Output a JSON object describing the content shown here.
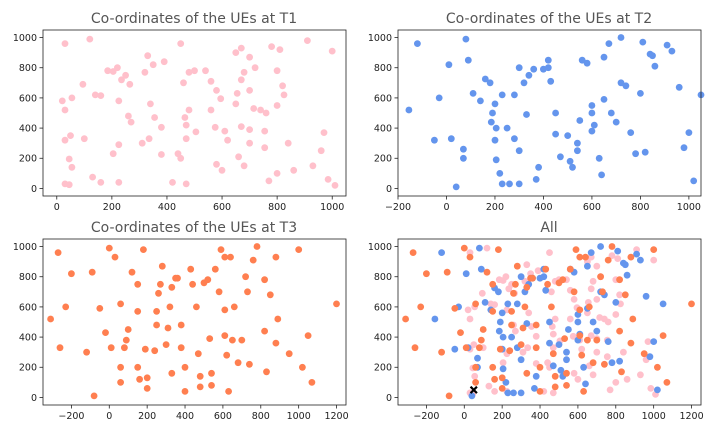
{
  "chart_data": [
    {
      "type": "scatter",
      "title": "Co-ordinates of the UEs at T1",
      "xlim": [
        -50,
        1050
      ],
      "ylim": [
        -50,
        1050
      ],
      "xticks": [
        0,
        200,
        400,
        600,
        800,
        1000
      ],
      "yticks": [
        0,
        200,
        400,
        600,
        800,
        1000
      ],
      "series": [
        {
          "color": "#ffc0cb",
          "points": [
            [
              30,
              960
            ],
            [
              120,
              990
            ],
            [
              20,
              580
            ],
            [
              30,
              520
            ],
            [
              95,
              690
            ],
            [
              55,
              600
            ],
            [
              30,
              320
            ],
            [
              50,
              350
            ],
            [
              45,
              195
            ],
            [
              55,
              140
            ],
            [
              30,
              30
            ],
            [
              45,
              25
            ],
            [
              100,
              330
            ],
            [
              140,
              620
            ],
            [
              160,
              615
            ],
            [
              185,
              780
            ],
            [
              205,
              775
            ],
            [
              220,
              800
            ],
            [
              235,
              720
            ],
            [
              250,
              750
            ],
            [
              265,
              690
            ],
            [
              225,
              580
            ],
            [
              260,
              480
            ],
            [
              270,
              440
            ],
            [
              225,
              290
            ],
            [
              205,
              230
            ],
            [
              225,
              40
            ],
            [
              130,
              75
            ],
            [
              160,
              40
            ],
            [
              330,
              880
            ],
            [
              350,
              820
            ],
            [
              320,
              770
            ],
            [
              390,
              840
            ],
            [
              340,
              560
            ],
            [
              355,
              470
            ],
            [
              380,
              405
            ],
            [
              335,
              330
            ],
            [
              310,
              300
            ],
            [
              380,
              225
            ],
            [
              450,
              960
            ],
            [
              480,
              770
            ],
            [
              500,
              780
            ],
            [
              460,
              700
            ],
            [
              480,
              520
            ],
            [
              465,
              470
            ],
            [
              470,
              420
            ],
            [
              505,
              375
            ],
            [
              470,
              330
            ],
            [
              440,
              230
            ],
            [
              450,
              200
            ],
            [
              420,
              40
            ],
            [
              470,
              30
            ],
            [
              540,
              780
            ],
            [
              560,
              710
            ],
            [
              580,
              650
            ],
            [
              595,
              595
            ],
            [
              560,
              520
            ],
            [
              575,
              405
            ],
            [
              610,
              380
            ],
            [
              620,
              320
            ],
            [
              580,
              160
            ],
            [
              600,
              120
            ],
            [
              650,
              900
            ],
            [
              670,
              930
            ],
            [
              700,
              870
            ],
            [
              670,
              720
            ],
            [
              700,
              650
            ],
            [
              655,
              630
            ],
            [
              650,
              560
            ],
            [
              715,
              530
            ],
            [
              740,
              520
            ],
            [
              760,
              500
            ],
            [
              670,
              410
            ],
            [
              700,
              390
            ],
            [
              755,
              380
            ],
            [
              660,
              210
            ],
            [
              680,
              150
            ],
            [
              700,
              300
            ],
            [
              755,
              270
            ],
            [
              780,
              940
            ],
            [
              810,
              920
            ],
            [
              800,
              780
            ],
            [
              820,
              680
            ],
            [
              825,
              620
            ],
            [
              800,
              550
            ],
            [
              840,
              300
            ],
            [
              860,
              120
            ],
            [
              800,
              100
            ],
            [
              770,
              50
            ],
            [
              910,
              980
            ],
            [
              970,
              370
            ],
            [
              960,
              250
            ],
            [
              930,
              150
            ],
            [
              1000,
              910
            ],
            [
              985,
              60
            ],
            [
              1010,
              20
            ],
            [
              720,
              800
            ],
            [
              680,
              770
            ]
          ]
        }
      ]
    },
    {
      "type": "scatter",
      "title": "Co-ordinates of the UEs at T2",
      "xlim": [
        -200,
        1050
      ],
      "ylim": [
        -50,
        1050
      ],
      "xticks": [
        -200,
        0,
        200,
        400,
        600,
        800,
        1000
      ],
      "yticks": [
        0,
        200,
        400,
        600,
        800,
        1000
      ],
      "series": [
        {
          "color": "#6495ed",
          "points": [
            [
              -155,
              520
            ],
            [
              -120,
              960
            ],
            [
              -50,
              320
            ],
            [
              -30,
              600
            ],
            [
              10,
              820
            ],
            [
              20,
              330
            ],
            [
              40,
              10
            ],
            [
              70,
              200
            ],
            [
              70,
              260
            ],
            [
              80,
              990
            ],
            [
              90,
              850
            ],
            [
              110,
              630
            ],
            [
              140,
              580
            ],
            [
              160,
              725
            ],
            [
              180,
              700
            ],
            [
              185,
              440
            ],
            [
              190,
              500
            ],
            [
              200,
              560
            ],
            [
              205,
              400
            ],
            [
              200,
              320
            ],
            [
              205,
              190
            ],
            [
              220,
              100
            ],
            [
              230,
              30
            ],
            [
              260,
              30
            ],
            [
              230,
              620
            ],
            [
              250,
              400
            ],
            [
              280,
              330
            ],
            [
              280,
              620
            ],
            [
              300,
              800
            ],
            [
              300,
              30
            ],
            [
              320,
              700
            ],
            [
              330,
              490
            ],
            [
              340,
              750
            ],
            [
              360,
              790
            ],
            [
              370,
              60
            ],
            [
              380,
              140
            ],
            [
              400,
              790
            ],
            [
              420,
              850
            ],
            [
              420,
              800
            ],
            [
              430,
              710
            ],
            [
              450,
              500
            ],
            [
              450,
              360
            ],
            [
              500,
              350
            ],
            [
              510,
              180
            ],
            [
              520,
              140
            ],
            [
              540,
              250
            ],
            [
              540,
              300
            ],
            [
              550,
              450
            ],
            [
              560,
              850
            ],
            [
              580,
              830
            ],
            [
              600,
              550
            ],
            [
              600,
              500
            ],
            [
              600,
              380
            ],
            [
              610,
              420
            ],
            [
              630,
              200
            ],
            [
              650,
              870
            ],
            [
              650,
              590
            ],
            [
              670,
              960
            ],
            [
              680,
              500
            ],
            [
              700,
              440
            ],
            [
              720,
              1000
            ],
            [
              720,
              700
            ],
            [
              740,
              680
            ],
            [
              760,
              370
            ],
            [
              780,
              230
            ],
            [
              800,
              630
            ],
            [
              810,
              970
            ],
            [
              820,
              240
            ],
            [
              840,
              890
            ],
            [
              850,
              880
            ],
            [
              860,
              810
            ],
            [
              910,
              950
            ],
            [
              930,
              910
            ],
            [
              960,
              670
            ],
            [
              980,
              270
            ],
            [
              1000,
              370
            ],
            [
              1020,
              50
            ],
            [
              1050,
              620
            ],
            [
              300,
              250
            ],
            [
              470,
              210
            ],
            [
              640,
              90
            ]
          ]
        }
      ]
    },
    {
      "type": "scatter",
      "title": "Co-ordinates of the UEs at T3",
      "xlim": [
        -350,
        1250
      ],
      "ylim": [
        -50,
        1050
      ],
      "xticks": [
        -200,
        0,
        200,
        400,
        600,
        800,
        1000,
        1200
      ],
      "yticks": [
        0,
        200,
        400,
        600,
        800,
        1000
      ],
      "series": [
        {
          "color": "#ff7f50",
          "points": [
            [
              -310,
              520
            ],
            [
              -270,
              960
            ],
            [
              -260,
              330
            ],
            [
              -230,
              600
            ],
            [
              -200,
              820
            ],
            [
              -120,
              300
            ],
            [
              -90,
              830
            ],
            [
              -80,
              10
            ],
            [
              -50,
              590
            ],
            [
              -20,
              430
            ],
            [
              0,
              990
            ],
            [
              10,
              330
            ],
            [
              30,
              930
            ],
            [
              60,
              620
            ],
            [
              60,
              200
            ],
            [
              60,
              100
            ],
            [
              80,
              330
            ],
            [
              90,
              380
            ],
            [
              100,
              450
            ],
            [
              120,
              830
            ],
            [
              150,
              750
            ],
            [
              150,
              570
            ],
            [
              150,
              200
            ],
            [
              160,
              120
            ],
            [
              180,
              980
            ],
            [
              190,
              320
            ],
            [
              200,
              130
            ],
            [
              240,
              310
            ],
            [
              250,
              480
            ],
            [
              250,
              570
            ],
            [
              260,
              690
            ],
            [
              270,
              750
            ],
            [
              280,
              870
            ],
            [
              300,
              350
            ],
            [
              310,
              460
            ],
            [
              320,
              600
            ],
            [
              330,
              730
            ],
            [
              350,
              790
            ],
            [
              360,
              790
            ],
            [
              380,
              480
            ],
            [
              380,
              330
            ],
            [
              400,
              40
            ],
            [
              400,
              200
            ],
            [
              430,
              850
            ],
            [
              440,
              750
            ],
            [
              460,
              600
            ],
            [
              470,
              290
            ],
            [
              480,
              70
            ],
            [
              500,
              760
            ],
            [
              520,
              780
            ],
            [
              530,
              390
            ],
            [
              540,
              80
            ],
            [
              560,
              850
            ],
            [
              580,
              700
            ],
            [
              590,
              980
            ],
            [
              610,
              410
            ],
            [
              610,
              580
            ],
            [
              610,
              930
            ],
            [
              620,
              280
            ],
            [
              640,
              930
            ],
            [
              650,
              380
            ],
            [
              660,
              600
            ],
            [
              680,
              230
            ],
            [
              700,
              380
            ],
            [
              720,
              800
            ],
            [
              730,
              700
            ],
            [
              740,
              220
            ],
            [
              760,
              910
            ],
            [
              780,
              1000
            ],
            [
              820,
              780
            ],
            [
              820,
              440
            ],
            [
              830,
              170
            ],
            [
              850,
              680
            ],
            [
              880,
              360
            ],
            [
              880,
              930
            ],
            [
              890,
              520
            ],
            [
              950,
              290
            ],
            [
              1000,
              980
            ],
            [
              1020,
              200
            ],
            [
              1050,
              410
            ],
            [
              1070,
              100
            ],
            [
              1200,
              620
            ],
            [
              480,
              140
            ],
            [
              540,
              160
            ],
            [
              330,
              160
            ],
            [
              630,
              40
            ],
            [
              200,
              60
            ]
          ]
        }
      ]
    },
    {
      "type": "scatter",
      "title": "All",
      "xlim": [
        -350,
        1250
      ],
      "ylim": [
        -50,
        1050
      ],
      "xticks": [
        -200,
        0,
        200,
        400,
        600,
        800,
        1000,
        1200
      ],
      "yticks": [
        0,
        200,
        400,
        600,
        800,
        1000
      ],
      "series_refs": [
        0,
        1,
        2
      ],
      "marker": {
        "x": 50,
        "y": 50,
        "color": "#000000",
        "symbol": "x"
      }
    }
  ]
}
